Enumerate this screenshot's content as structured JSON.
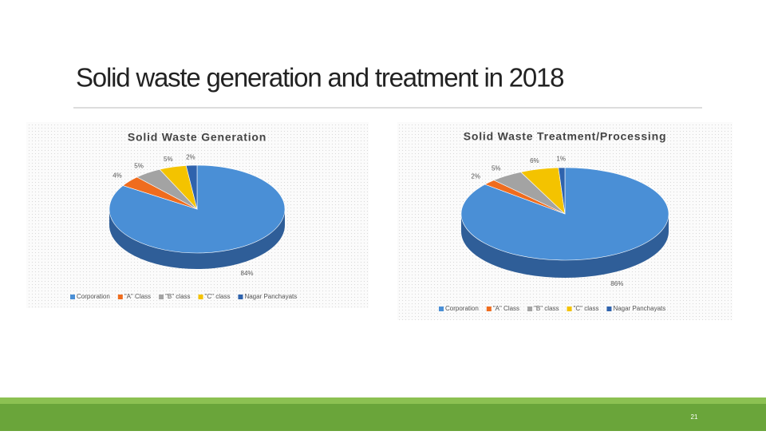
{
  "title": "Solid waste generation and treatment in 2018",
  "page_number": 21,
  "chart_data": [
    {
      "type": "pie",
      "title": "Solid Waste Generation",
      "categories": [
        "Corporation",
        "\"A\" Class",
        "\"B\" class",
        "\"C\" class",
        "Nagar Panchayats"
      ],
      "values": [
        84,
        4,
        5,
        5,
        2
      ],
      "value_labels": [
        "84%",
        "4%",
        "5%",
        "5%",
        "2%"
      ],
      "colors": [
        "#4a8fd6",
        "#ef6c1e",
        "#a3a3a3",
        "#f4c300",
        "#2f63ad"
      ]
    },
    {
      "type": "pie",
      "title": "Solid Waste Treatment/Processing",
      "categories": [
        "Corporation",
        "\"A\" Class",
        "\"B\" class",
        "\"C\" class",
        "Nagar Panchayats"
      ],
      "values": [
        86,
        2,
        5,
        6,
        1
      ],
      "value_labels": [
        "86%",
        "2%",
        "5%",
        "6%",
        "1%"
      ],
      "colors": [
        "#4a8fd6",
        "#ef6c1e",
        "#a3a3a3",
        "#f4c300",
        "#2f63ad"
      ]
    }
  ]
}
